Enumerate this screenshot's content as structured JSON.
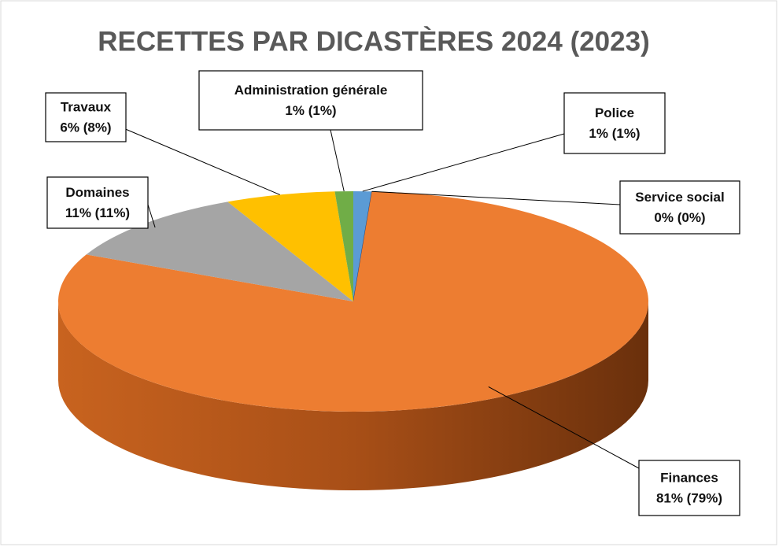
{
  "chart_data": {
    "type": "pie",
    "title": "RECETTES PAR DICASTÈRES 2024 (2023)",
    "categories": [
      "Police",
      "Service social",
      "Finances",
      "Domaines",
      "Travaux",
      "Administration générale"
    ],
    "values": [
      1,
      0,
      81,
      11,
      6,
      1
    ],
    "value_labels": [
      "1% (1%)",
      "0% (0%)",
      "81% (79%)",
      "11% (11%)",
      "6% (8%)",
      "1% (1%)"
    ],
    "colors": [
      "#5b9bd5",
      "#264478",
      "#ed7d31",
      "#a5a5a5",
      "#ffc000",
      "#70ad47"
    ]
  }
}
